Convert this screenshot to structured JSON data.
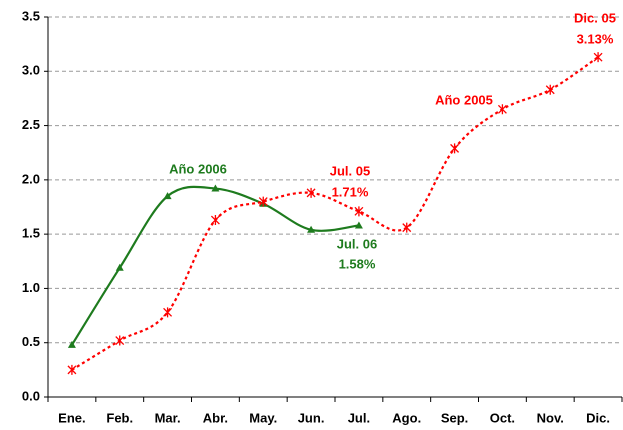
{
  "chart_data": {
    "type": "line",
    "categories": [
      "Ene.",
      "Feb.",
      "Mar.",
      "Abr.",
      "May.",
      "Jun.",
      "Jul.",
      "Ago.",
      "Sep.",
      "Oct.",
      "Nov.",
      "Dic."
    ],
    "series": [
      {
        "name": "Año 2006",
        "color": "#1e7b1e",
        "values": [
          0.48,
          1.19,
          1.85,
          1.92,
          1.78,
          1.54,
          1.58,
          null,
          null,
          null,
          null,
          null
        ]
      },
      {
        "name": "Año 2005",
        "color": "#ff0000",
        "values": [
          0.25,
          0.52,
          0.78,
          1.63,
          1.8,
          1.88,
          1.71,
          1.56,
          2.29,
          2.65,
          2.83,
          3.13
        ]
      }
    ],
    "annotations": [
      "Jul. 05",
      "1.71%",
      "Jul. 06",
      "1.58%",
      "Dic. 05",
      "3.13%"
    ],
    "ylim": [
      0,
      3.5
    ],
    "yticks": [
      {
        "value": 0,
        "label": "0.0"
      },
      0.5,
      {
        "value": 1,
        "label": "1.0"
      },
      1.5,
      {
        "value": 2,
        "label": "2.0"
      },
      2.5,
      {
        "value": 3,
        "label": "3.0"
      },
      3.5
    ],
    "grid": true
  }
}
